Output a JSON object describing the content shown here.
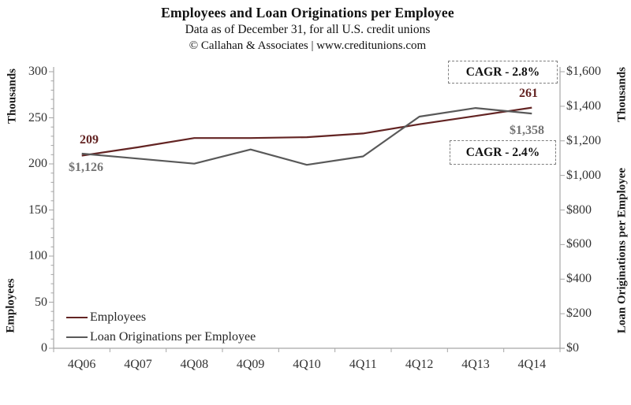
{
  "header": {
    "title": "Employees and Loan Originations per Employee",
    "subtitle": "Data as of December 31, for all U.S. credit unions",
    "attribution": "© Callahan & Associates | www.creditunions.com"
  },
  "colors": {
    "employees_line": "#632423",
    "loans_line": "#595959",
    "loans_text": "#737373",
    "axis": "#a6a6a6",
    "tick_text": "#333333"
  },
  "chart_data": {
    "type": "line",
    "categories": [
      "4Q06",
      "4Q07",
      "4Q08",
      "4Q09",
      "4Q10",
      "4Q11",
      "4Q12",
      "4Q13",
      "4Q14"
    ],
    "series": [
      {
        "name": "Employees",
        "axis": "left",
        "color": "#632423",
        "values": [
          209,
          218,
          228,
          228,
          229,
          233,
          243,
          252,
          261
        ]
      },
      {
        "name": "Loan Originations per Employee",
        "axis": "right",
        "color": "#595959",
        "values": [
          1126,
          1097,
          1068,
          1150,
          1061,
          1110,
          1340,
          1390,
          1358
        ]
      }
    ],
    "left_axis": {
      "unit_label": "Thousands",
      "title": "Employees",
      "min": 0,
      "max": 300,
      "major_step": 50,
      "minor_step": 10,
      "tick_labels": [
        "300",
        "250",
        "200",
        "150",
        "100",
        "50",
        "0"
      ]
    },
    "right_axis": {
      "unit_label": "Thousands",
      "title": "Loan Originations per Employee",
      "min": 0,
      "max": 1600,
      "major_step": 200,
      "tick_labels": [
        "$1,600",
        "$1,400",
        "$1,200",
        "$1,000",
        "$800",
        "$600",
        "$400",
        "$200",
        "$0"
      ]
    },
    "legend": {
      "position": "bottom-left-inside",
      "items": [
        "Employees",
        "Loan Originations per Employee"
      ]
    },
    "grid": "off",
    "annotations": {
      "employees_first": "209",
      "employees_last": "261",
      "loans_first": "$1,126",
      "loans_last": "$1,358",
      "cagr_employees": "CAGR - 2.8%",
      "cagr_loans": "CAGR - 2.4%"
    }
  }
}
